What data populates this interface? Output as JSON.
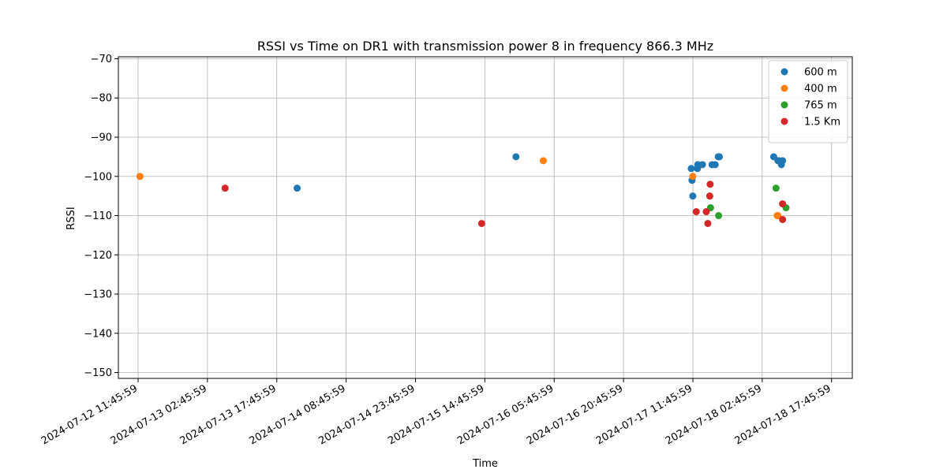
{
  "chart_data": {
    "type": "scatter",
    "title": "RSSI vs Time on DR1 with transmission power 8 in frequency 866.3 MHz",
    "xlabel": "Time",
    "ylabel": "RSSI",
    "ylim": [
      -151.5,
      -69.5
    ],
    "yticks": [
      -70,
      -80,
      -90,
      -100,
      -110,
      -120,
      -130,
      -140,
      -150
    ],
    "ytick_labels": [
      "−70",
      "−80",
      "−90",
      "−100",
      "−110",
      "−120",
      "−130",
      "−140",
      "−150"
    ],
    "xlim": [
      "2024-07-12 07:30:00",
      "2024-07-18 22:15:00"
    ],
    "xticks": [
      "2024-07-12 11:45:59",
      "2024-07-13 02:45:59",
      "2024-07-13 17:45:59",
      "2024-07-14 08:45:59",
      "2024-07-14 23:45:59",
      "2024-07-15 14:45:59",
      "2024-07-16 05:45:59",
      "2024-07-16 20:45:59",
      "2024-07-17 11:45:59",
      "2024-07-18 02:45:59",
      "2024-07-18 17:45:59"
    ],
    "grid": true,
    "legend_position": "top-right",
    "series": [
      {
        "name": "600 m",
        "color": "#1f77b4",
        "points": [
          [
            "2024-07-13 22:10:00",
            -103
          ],
          [
            "2024-07-15 21:30:00",
            -95
          ],
          [
            "2024-07-17 11:25:00",
            -98
          ],
          [
            "2024-07-17 11:35:00",
            -101
          ],
          [
            "2024-07-17 11:45:00",
            -105
          ],
          [
            "2024-07-17 12:45:00",
            -98
          ],
          [
            "2024-07-17 12:50:00",
            -97
          ],
          [
            "2024-07-17 13:50:00",
            -97
          ],
          [
            "2024-07-17 15:55:00",
            -97
          ],
          [
            "2024-07-17 16:35:00",
            -97
          ],
          [
            "2024-07-17 17:15:00",
            -95
          ],
          [
            "2024-07-17 17:30:00",
            -95
          ],
          [
            "2024-07-18 05:15:00",
            -95
          ],
          [
            "2024-07-18 06:10:00",
            -96
          ],
          [
            "2024-07-18 06:25:00",
            -96
          ],
          [
            "2024-07-18 06:55:00",
            -97
          ],
          [
            "2024-07-18 07:10:00",
            -96
          ]
        ]
      },
      {
        "name": "400 m",
        "color": "#ff7f0e",
        "points": [
          [
            "2024-07-12 12:10:00",
            -100
          ],
          [
            "2024-07-16 03:25:00",
            -96
          ],
          [
            "2024-07-17 11:45:00",
            -100
          ],
          [
            "2024-07-18 06:00:00",
            -110
          ],
          [
            "2024-07-18 06:10:00",
            -110
          ]
        ]
      },
      {
        "name": "765 m",
        "color": "#2ca02c",
        "points": [
          [
            "2024-07-17 15:35:00",
            -108
          ],
          [
            "2024-07-17 17:20:00",
            -110
          ],
          [
            "2024-07-18 05:45:00",
            -103
          ],
          [
            "2024-07-18 07:55:00",
            -108
          ]
        ]
      },
      {
        "name": "1.5 Km",
        "color": "#d62728",
        "points": [
          [
            "2024-07-13 06:35:00",
            -103
          ],
          [
            "2024-07-15 14:05:00",
            -112
          ],
          [
            "2024-07-17 12:30:00",
            -109
          ],
          [
            "2024-07-17 14:40:00",
            -109
          ],
          [
            "2024-07-17 15:00:00",
            -112
          ],
          [
            "2024-07-17 15:25:00",
            -105
          ],
          [
            "2024-07-17 15:30:00",
            -102
          ],
          [
            "2024-07-18 07:10:00",
            -107
          ],
          [
            "2024-07-18 07:10:30",
            -111
          ]
        ]
      }
    ]
  }
}
